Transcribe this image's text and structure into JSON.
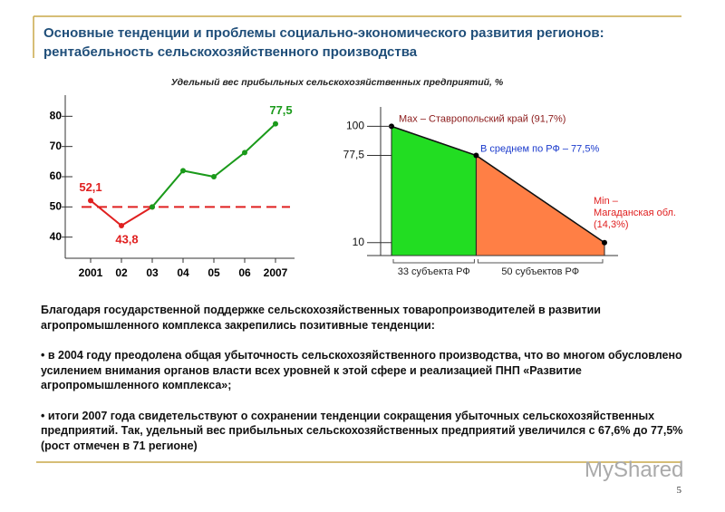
{
  "header": {
    "title_line1": "Основные тенденции и проблемы социально-экономического развития регионов:",
    "title_line2": "рентабельность сельскохозяйственного производства"
  },
  "caption": "Удельный вес прибыльных сельскохозяйственных предприятий, %",
  "chart_data": [
    {
      "type": "line",
      "categories": [
        "2001",
        "02",
        "03",
        "04",
        "05",
        "06",
        "2007"
      ],
      "series": [
        {
          "color": "#e02020",
          "values": [
            52.1,
            43.8,
            50,
            null,
            null,
            null,
            null
          ],
          "value_labels": [
            "52,1",
            "43,8",
            null,
            null,
            null,
            null,
            null
          ]
        },
        {
          "color": "#1a9a1a",
          "values": [
            null,
            null,
            50,
            62,
            60,
            68,
            77.5
          ],
          "value_labels": [
            null,
            null,
            null,
            null,
            null,
            null,
            "77,5"
          ]
        }
      ],
      "ylim": [
        33,
        87
      ],
      "yticks": [
        40,
        50,
        60,
        70,
        80
      ],
      "reference_line": {
        "value": 50,
        "color": "#e02020",
        "dashed": true
      }
    },
    {
      "type": "area",
      "points": [
        100,
        77.5,
        10
      ],
      "segments": [
        {
          "label": "33 субъекта РФ",
          "count": 33,
          "color": "#22dd22"
        },
        {
          "label": "50 субъектов РФ",
          "count": 50,
          "color": "#ff7f45"
        }
      ],
      "ylim": [
        0,
        115
      ],
      "yticks": [
        10,
        {
          "value": 77.5,
          "label": "77,5"
        },
        100
      ],
      "annotations": [
        {
          "lines": [
            "Max – Ставропольский край (91,7%)"
          ],
          "color": "#8b1a1a"
        },
        {
          "lines": [
            "В среднем по РФ – 77,5%"
          ],
          "color": "#1a3acc"
        },
        {
          "lines": [
            "Min –",
            "Магаданская обл.",
            "(14,3%)"
          ],
          "color": "#e02020"
        }
      ]
    }
  ],
  "text": {
    "intro": "Благодаря государственной поддержке сельскохозяйственных товаропроизводителей в развитии агропромышленного комплекса закрепились позитивные тенденции:",
    "bullets": [
      "• в 2004 году преодолена общая убыточность сельскохозяйственного производства, что во многом обусловлено усилением внимания органов власти всех уровней к этой сфере и реализацией ПНП «Развитие агропромышленного комплекса»;",
      "• итоги 2007 года свидетельствуют о сохранении тенденции сокращения убыточных сельскохозяйственных предприятий. Так, удельный вес прибыльных сельскохозяйственных предприятий увеличился с 67,6% до 77,5% (рост отмечен в 71 регионе)"
    ]
  },
  "footer": {
    "page": "5",
    "logo": "MyShared"
  }
}
